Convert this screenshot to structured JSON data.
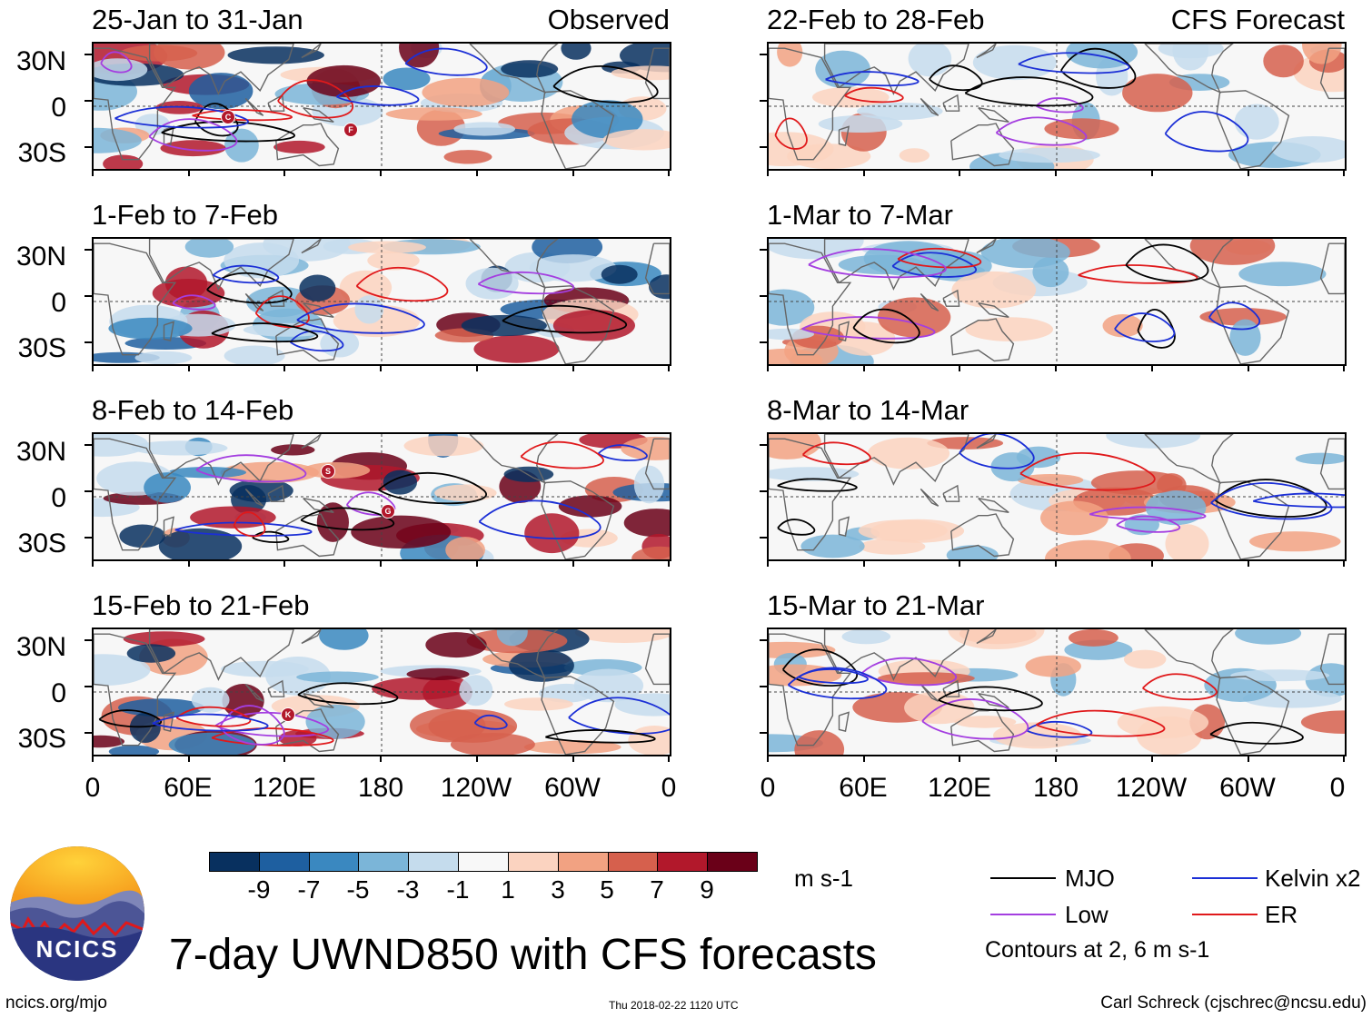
{
  "panels": [
    {
      "period": "25-Jan to 31-Jan",
      "tag": "Observed"
    },
    {
      "period": "1-Feb to 7-Feb",
      "tag": ""
    },
    {
      "period": "8-Feb to 14-Feb",
      "tag": ""
    },
    {
      "period": "15-Feb to 21-Feb",
      "tag": ""
    },
    {
      "period": "22-Feb to 28-Feb",
      "tag": "CFS Forecast"
    },
    {
      "period": "1-Mar to 7-Mar",
      "tag": ""
    },
    {
      "period": "8-Mar to 14-Mar",
      "tag": ""
    },
    {
      "period": "15-Mar to 21-Mar",
      "tag": ""
    }
  ],
  "axes": {
    "lat_labels": [
      "30N",
      "0",
      "30S"
    ],
    "lon_labels": [
      "0",
      "60E",
      "120E",
      "180",
      "120W",
      "60W",
      "0"
    ]
  },
  "colorbar": {
    "colors": [
      "#08305f",
      "#1e5fa0",
      "#3a88c0",
      "#7bb5d8",
      "#c5dced",
      "#f8f8f8",
      "#fbd3c0",
      "#f2a282",
      "#d6604d",
      "#b2182b",
      "#6a0018"
    ],
    "labels": [
      "-9",
      "-7",
      "-5",
      "-3",
      "-1",
      "1",
      "3",
      "5",
      "7",
      "9"
    ],
    "units": "m s-1"
  },
  "legend": {
    "items": [
      {
        "label": "MJO",
        "color": "#000000"
      },
      {
        "label": "Kelvin x2",
        "color": "#1b2fd6"
      },
      {
        "label": "Low",
        "color": "#a43ee0"
      },
      {
        "label": "ER",
        "color": "#e0191b"
      }
    ],
    "note": "Contours at 2, 6 m s-1"
  },
  "title": "7-day UWND850 with CFS forecasts",
  "logo_text": "NCICS",
  "footer": {
    "left": "ncics.org/mjo",
    "center": "Thu 2018-02-22 1120 UTC",
    "right": "Carl Schreck (cjschrec@ncsu.edu)"
  },
  "storm_labels": [
    "C",
    "F",
    "S",
    "G",
    "K"
  ]
}
